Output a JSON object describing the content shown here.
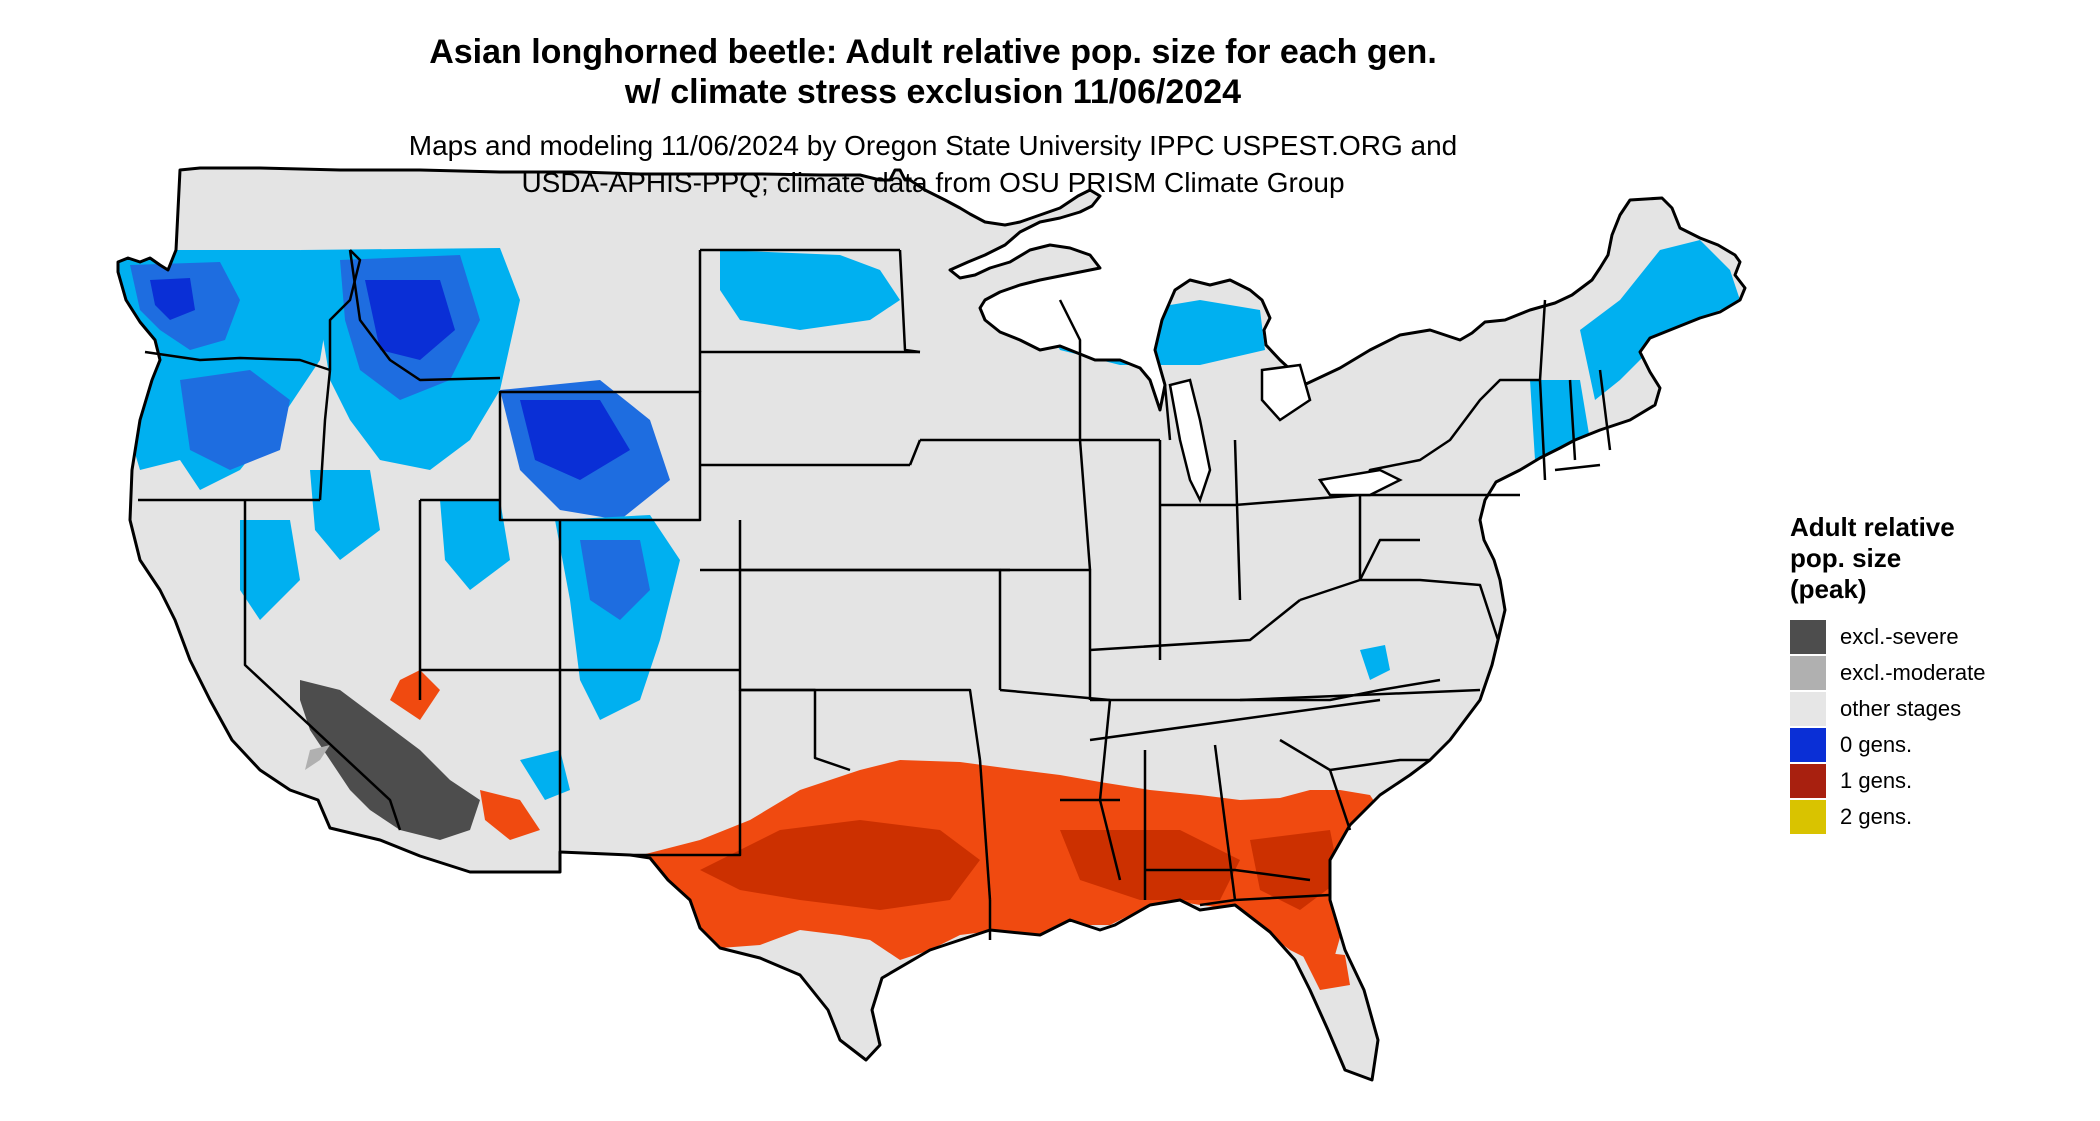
{
  "title_line1": "Asian longhorned beetle: Adult relative pop. size for each gen.",
  "title_line2": "w/ climate stress exclusion 11/06/2024",
  "subtitle_line1": "Maps and modeling 11/06/2024 by Oregon State University IPPC USPEST.ORG and",
  "subtitle_line2": "USDA-APHIS-PPQ; climate data from OSU PRISM Climate Group",
  "legend": {
    "title_line1": "Adult relative",
    "title_line2": "pop. size",
    "title_line3": "(peak)",
    "items": [
      {
        "label": "excl.-severe",
        "color": "#4d4d4d"
      },
      {
        "label": "excl.-moderate",
        "color": "#b0b0b0"
      },
      {
        "label": "other stages",
        "color": "#e6e6e6"
      },
      {
        "label": "0 gens.",
        "color": "#0a2fd6"
      },
      {
        "label": "1 gens.",
        "color": "#a8200f"
      },
      {
        "label": "2 gens.",
        "color": "#d9c300"
      }
    ]
  },
  "map_colors": {
    "background_land": "#e4e4e4",
    "light_blue": "#00b0f0",
    "mid_blue": "#1e6de0",
    "dark_blue": "#0a2fd6",
    "orange": "#f04a10",
    "dark_orange": "#cc3000",
    "dark_gray": "#4d4d4d",
    "border": "#000000"
  }
}
